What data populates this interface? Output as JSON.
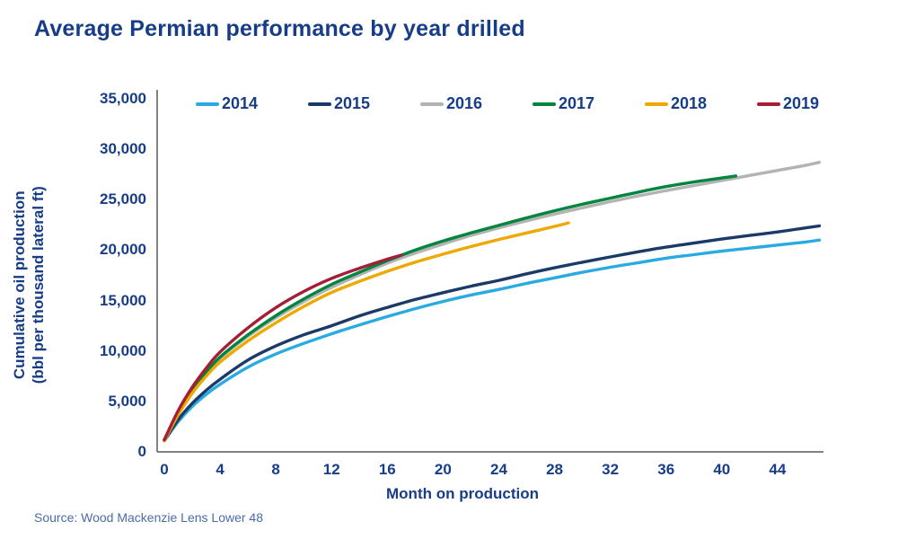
{
  "header": {
    "title": "Average Permian performance by year drilled"
  },
  "footer": {
    "source": "Source: Wood Mackenzie Lens Lower 48"
  },
  "colors": {
    "title_text": "#173d87",
    "axis_line": "#58595b",
    "source_text": "#4a6ba8"
  },
  "chart_data": {
    "type": "line",
    "title": "Average Permian performance by year drilled",
    "xlabel": "Month on production",
    "ylabel_line1": "Cumulative oil production",
    "ylabel_line2": "(bbl per thousand lateral ft)",
    "xlim": [
      0,
      47.5
    ],
    "ylim": [
      0,
      35000
    ],
    "grid": false,
    "legend_position": "top",
    "xticks": {
      "values": [
        0,
        4,
        8,
        12,
        16,
        20,
        24,
        28,
        32,
        36,
        40,
        44
      ],
      "labels": [
        "0",
        "4",
        "8",
        "12",
        "16",
        "20",
        "24",
        "28",
        "32",
        "36",
        "40",
        "44"
      ]
    },
    "yticks": {
      "values": [
        0,
        5000,
        10000,
        15000,
        20000,
        25000,
        30000,
        35000
      ],
      "labels": [
        "0",
        "5,000",
        "10,000",
        "15,000",
        "20,000",
        "25,000",
        "30,000",
        "35,000"
      ]
    },
    "series": [
      {
        "name": "2014",
        "color": "#29abe2",
        "points": [
          [
            0,
            1100
          ],
          [
            1,
            3000
          ],
          [
            2,
            4500
          ],
          [
            3,
            5700
          ],
          [
            4,
            6700
          ],
          [
            6,
            8400
          ],
          [
            8,
            9700
          ],
          [
            10,
            10750
          ],
          [
            12,
            11700
          ],
          [
            14,
            12580
          ],
          [
            16,
            13410
          ],
          [
            18,
            14200
          ],
          [
            20,
            14910
          ],
          [
            22,
            15550
          ],
          [
            24,
            16100
          ],
          [
            26,
            16700
          ],
          [
            28,
            17250
          ],
          [
            30,
            17800
          ],
          [
            32,
            18300
          ],
          [
            34,
            18750
          ],
          [
            36,
            19200
          ],
          [
            38,
            19550
          ],
          [
            40,
            19900
          ],
          [
            42,
            20200
          ],
          [
            44,
            20500
          ],
          [
            46,
            20800
          ],
          [
            47,
            21000
          ]
        ]
      },
      {
        "name": "2015",
        "color": "#1b3a68",
        "points": [
          [
            0,
            1100
          ],
          [
            1,
            3200
          ],
          [
            2,
            4800
          ],
          [
            3,
            6100
          ],
          [
            4,
            7200
          ],
          [
            6,
            9100
          ],
          [
            8,
            10500
          ],
          [
            10,
            11600
          ],
          [
            12,
            12500
          ],
          [
            14,
            13480
          ],
          [
            16,
            14320
          ],
          [
            18,
            15100
          ],
          [
            20,
            15780
          ],
          [
            22,
            16420
          ],
          [
            24,
            17000
          ],
          [
            26,
            17650
          ],
          [
            28,
            18250
          ],
          [
            30,
            18800
          ],
          [
            32,
            19330
          ],
          [
            34,
            19830
          ],
          [
            36,
            20300
          ],
          [
            38,
            20700
          ],
          [
            40,
            21100
          ],
          [
            42,
            21450
          ],
          [
            44,
            21800
          ],
          [
            46,
            22200
          ],
          [
            47,
            22400
          ]
        ]
      },
      {
        "name": "2016",
        "color": "#b3b3b3",
        "points": [
          [
            0,
            1200
          ],
          [
            1,
            3800
          ],
          [
            2,
            6000
          ],
          [
            3,
            7800
          ],
          [
            4,
            9300
          ],
          [
            6,
            11450
          ],
          [
            8,
            13300
          ],
          [
            10,
            14900
          ],
          [
            12,
            16300
          ],
          [
            14,
            17550
          ],
          [
            16,
            18700
          ],
          [
            18,
            19700
          ],
          [
            20,
            20600
          ],
          [
            22,
            21450
          ],
          [
            24,
            22200
          ],
          [
            26,
            22900
          ],
          [
            28,
            23570
          ],
          [
            30,
            24200
          ],
          [
            32,
            24800
          ],
          [
            34,
            25370
          ],
          [
            36,
            25900
          ],
          [
            38,
            26400
          ],
          [
            40,
            26900
          ],
          [
            42,
            27400
          ],
          [
            44,
            27900
          ],
          [
            46,
            28400
          ],
          [
            47,
            28700
          ]
        ]
      },
      {
        "name": "2017",
        "color": "#00853e",
        "points": [
          [
            0,
            1200
          ],
          [
            1,
            3900
          ],
          [
            2,
            6100
          ],
          [
            3,
            7900
          ],
          [
            4,
            9400
          ],
          [
            6,
            11600
          ],
          [
            8,
            13500
          ],
          [
            10,
            15150
          ],
          [
            12,
            16600
          ],
          [
            14,
            17800
          ],
          [
            16,
            18950
          ],
          [
            18,
            20000
          ],
          [
            20,
            20900
          ],
          [
            22,
            21700
          ],
          [
            24,
            22450
          ],
          [
            26,
            23200
          ],
          [
            28,
            23900
          ],
          [
            30,
            24550
          ],
          [
            32,
            25150
          ],
          [
            34,
            25750
          ],
          [
            36,
            26300
          ],
          [
            38,
            26750
          ],
          [
            40,
            27150
          ],
          [
            41,
            27350
          ]
        ]
      },
      {
        "name": "2018",
        "color": "#eda900",
        "points": [
          [
            0,
            1100
          ],
          [
            1,
            3700
          ],
          [
            2,
            5800
          ],
          [
            3,
            7500
          ],
          [
            4,
            8900
          ],
          [
            6,
            11000
          ],
          [
            8,
            12800
          ],
          [
            10,
            14400
          ],
          [
            12,
            15800
          ],
          [
            14,
            16900
          ],
          [
            16,
            17900
          ],
          [
            18,
            18800
          ],
          [
            20,
            19600
          ],
          [
            22,
            20350
          ],
          [
            24,
            21050
          ],
          [
            26,
            21700
          ],
          [
            28,
            22350
          ],
          [
            29,
            22700
          ]
        ]
      },
      {
        "name": "2019",
        "color": "#a51e36",
        "points": [
          [
            0,
            1200
          ],
          [
            1,
            4100
          ],
          [
            2,
            6400
          ],
          [
            3,
            8300
          ],
          [
            4,
            9900
          ],
          [
            6,
            12300
          ],
          [
            8,
            14300
          ],
          [
            10,
            15900
          ],
          [
            12,
            17200
          ],
          [
            14,
            18200
          ],
          [
            16,
            19100
          ],
          [
            17,
            19500
          ]
        ]
      }
    ]
  }
}
